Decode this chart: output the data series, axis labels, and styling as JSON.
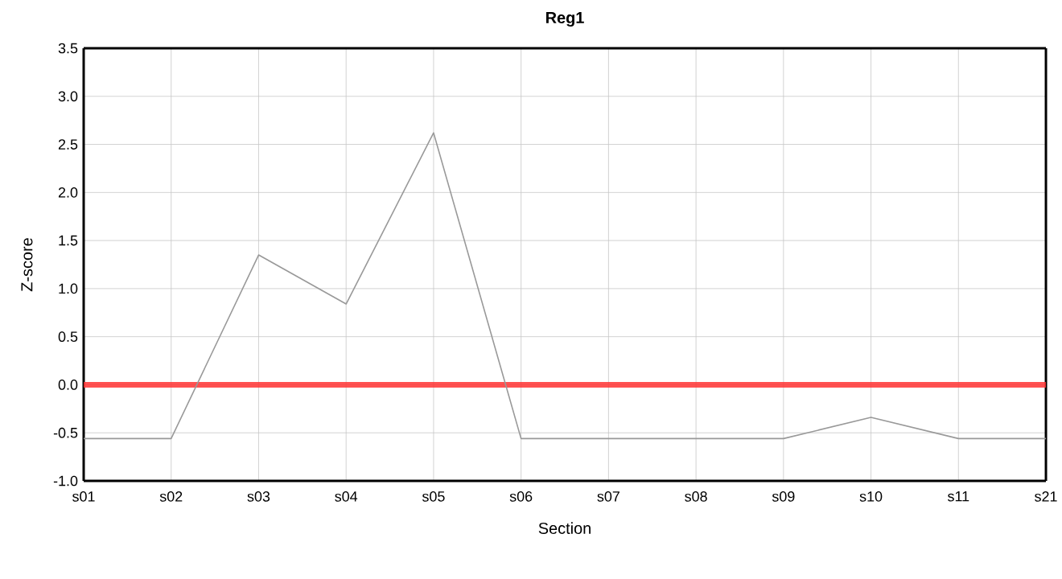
{
  "chart_data": {
    "type": "line",
    "title": "Reg1",
    "xlabel": "Section",
    "ylabel": "Z-score",
    "categories": [
      "s01",
      "s02",
      "s03",
      "s04",
      "s05",
      "s06",
      "s07",
      "s08",
      "s09",
      "s10",
      "s11",
      "s21"
    ],
    "series": [
      {
        "color": "#999999",
        "values": [
          -0.56,
          -0.56,
          1.35,
          0.84,
          2.62,
          -0.56,
          -0.56,
          -0.56,
          -0.56,
          -0.34,
          -0.56,
          -0.56
        ]
      }
    ],
    "ylim": [
      -1.0,
      3.5
    ],
    "yticks": [
      {
        "value": -1.0,
        "label": "-1.0"
      },
      {
        "value": -0.5,
        "label": "-0.5"
      },
      {
        "value": 0.0,
        "label": "0.0"
      },
      {
        "value": 0.5,
        "label": "0.5"
      },
      {
        "value": 1.0,
        "label": "1.0"
      },
      {
        "value": 1.5,
        "label": "1.5"
      },
      {
        "value": 2.0,
        "label": "2.0"
      },
      {
        "value": 2.5,
        "label": "2.5"
      },
      {
        "value": 3.0,
        "label": "3.0"
      },
      {
        "value": 3.5,
        "label": "3.5"
      }
    ],
    "ref_lines": [
      {
        "axis": "y",
        "value": 0,
        "color": "#ff3333"
      }
    ],
    "grid": true,
    "marker": "none",
    "line_style": "solid"
  }
}
